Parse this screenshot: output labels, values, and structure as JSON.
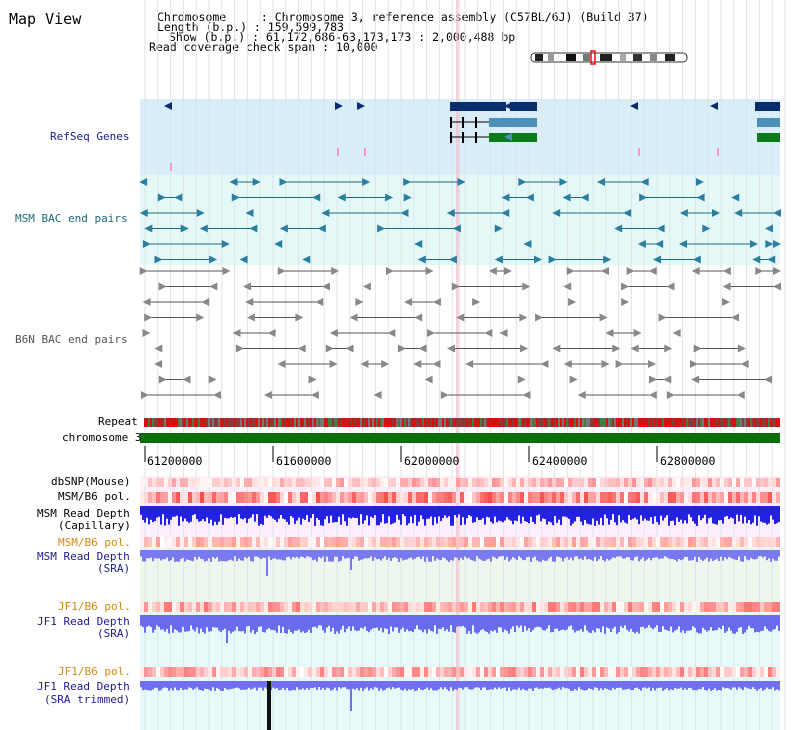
{
  "app": {
    "title": "Map View"
  },
  "info": {
    "chromosome_line": "Chromosome     : Chromosome 3, reference assembly (C57BL/6J) (Build 37)",
    "length_line": "Length (b.p.) : 159,599,783",
    "show_line": "Show (b.p.) : 61,172,686-63,173,173 : 2,000,488 bp",
    "coverage_line": "Read coverage check span : 10,000"
  },
  "tracks": {
    "refseq": "RefSeq Genes",
    "msm_bac": "MSM BAC end pairs",
    "b6n_bac": "B6N BAC end pairs",
    "repeat": "Repeat",
    "chromosome": "chromosome 3",
    "dbsnp": "dbSNP(Mouse)",
    "msm_pol": "MSM/B6 pol.",
    "msm_depth_cap_1": "MSM Read Depth",
    "msm_depth_cap_2": "(Capillary)",
    "msm_pol_2": "MSM/B6 pol.",
    "msm_depth_sra_1": "MSM Read Depth",
    "msm_depth_sra_2": "(SRA)",
    "jf1_pol": "JF1/B6 pol.",
    "jf1_depth_sra_1": "JF1 Read Depth",
    "jf1_depth_sra_2": "(SRA)",
    "jf1_pol_2": "JF1/B6 pol.",
    "jf1_depth_trim_1": "JF1 Read Depth",
    "jf1_depth_trim_2": "(SRA trimmed)"
  },
  "axis": {
    "ticks": [
      "61200000",
      "61600000",
      "62000000",
      "62400000",
      "62800000"
    ]
  },
  "colors": {
    "refseq_bg": "#d9eef9",
    "bac_bg": "#e5f8f8",
    "gene_dark": "#0a2d6e",
    "gene_mid": "#4a90b8",
    "gene_green": "#0a7a1a",
    "chrom_green": "#0a6e0a",
    "depth_blue": "#2222e0",
    "depth_light": "#8080ff"
  }
}
